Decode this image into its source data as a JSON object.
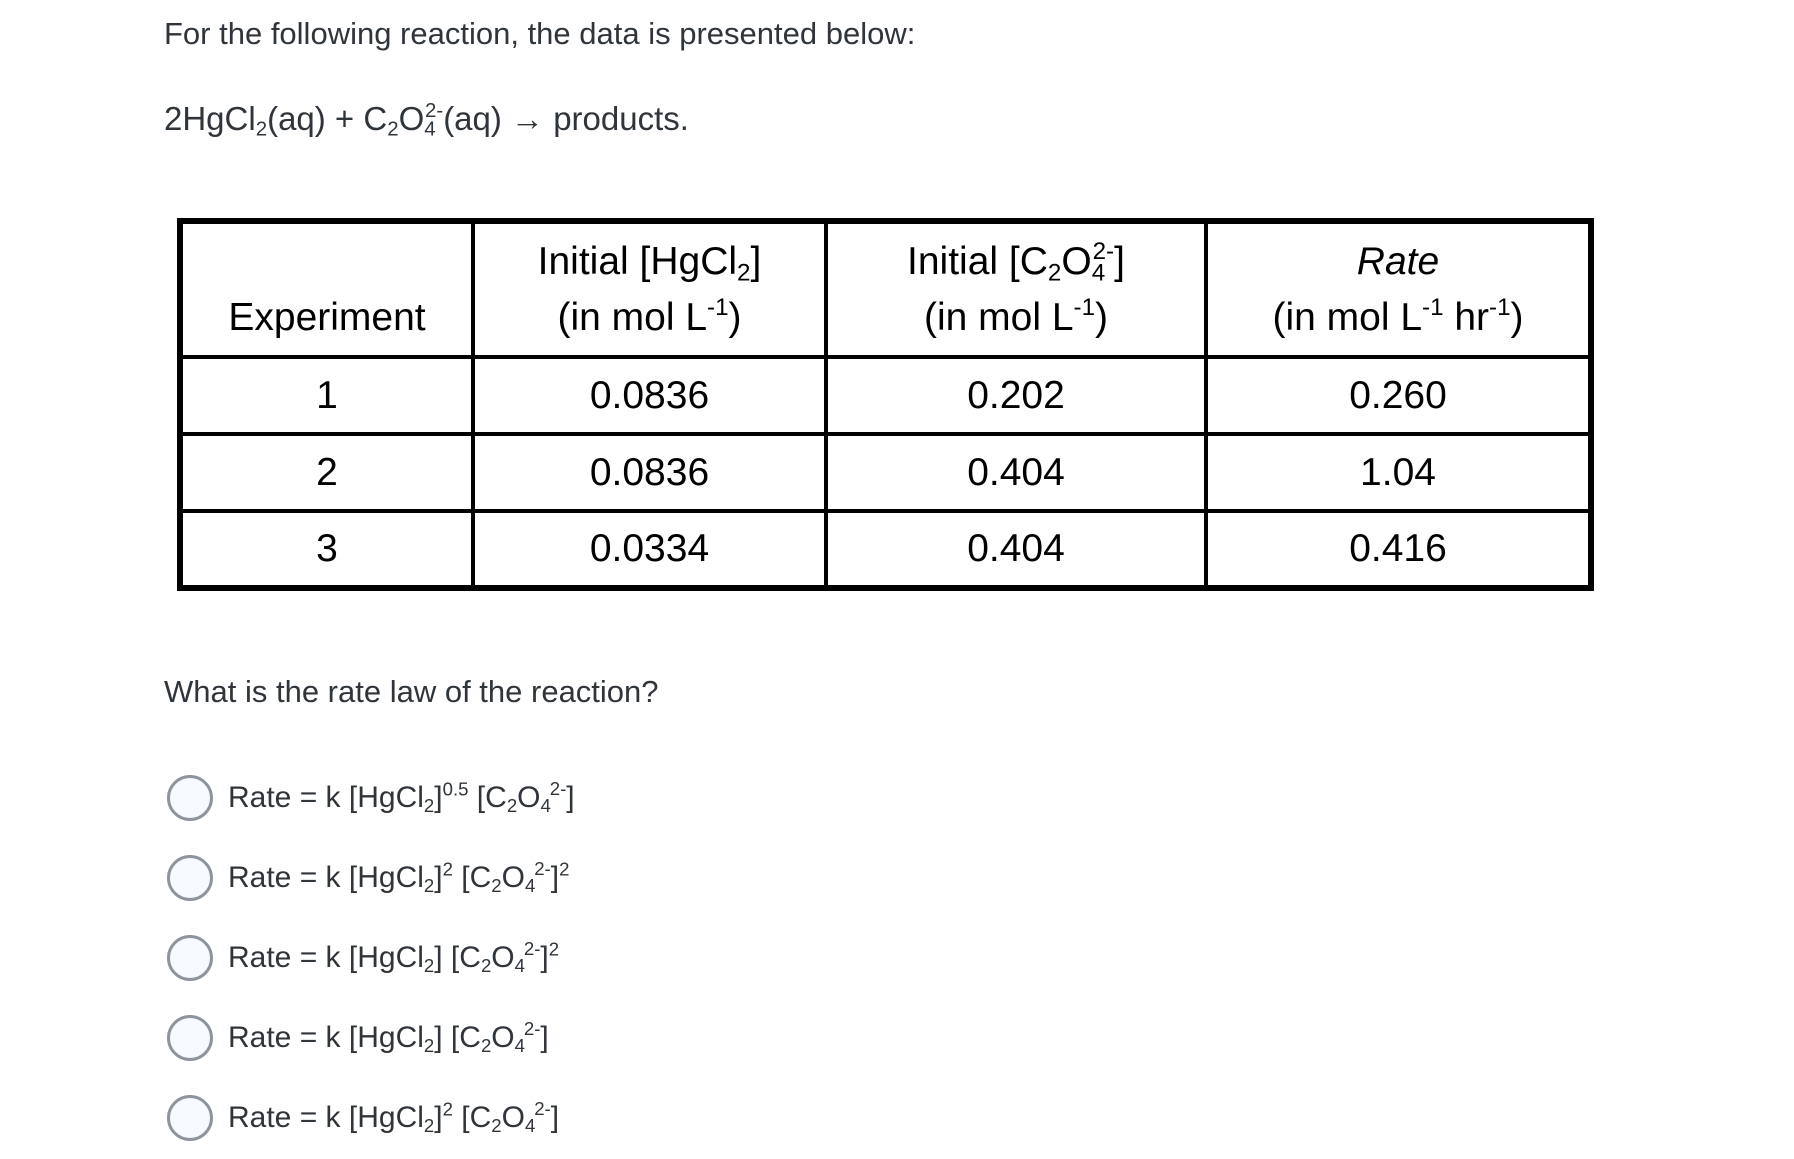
{
  "colors": {
    "text": "#2f353b",
    "table_text": "#000000",
    "table_border": "#000000",
    "radio_border": "#8d949e",
    "radio_fill": "#f6f9fd",
    "background": "#ffffff"
  },
  "intro_text": "For the following reaction, the data is presented below:",
  "equation_segments": [
    {
      "t": "n",
      "v": "2HgCl"
    },
    {
      "t": "b",
      "v": "2"
    },
    {
      "t": "n",
      "v": "(aq) + C"
    },
    {
      "t": "b",
      "v": "2"
    },
    {
      "t": "n",
      "v": "O"
    },
    {
      "t": "b",
      "v": "4"
    },
    {
      "t": "p",
      "v": "2-"
    },
    {
      "t": "n",
      "v": "(aq) → products."
    }
  ],
  "table": {
    "headers": {
      "experiment": "Experiment",
      "hgcl2_line1": [
        {
          "t": "n",
          "v": "Initial [HgCl"
        },
        {
          "t": "b",
          "v": "2"
        },
        {
          "t": "n",
          "v": "]"
        }
      ],
      "hgcl2_line2": [
        {
          "t": "n",
          "v": "(in mol L"
        },
        {
          "t": "p",
          "v": "-1"
        },
        {
          "t": "n",
          "v": ")"
        }
      ],
      "c2o4_line1": [
        {
          "t": "n",
          "v": "Initial [C"
        },
        {
          "t": "b",
          "v": "2"
        },
        {
          "t": "n",
          "v": "O"
        },
        {
          "t": "b",
          "v": "4"
        },
        {
          "t": "p",
          "v": "2-"
        },
        {
          "t": "n",
          "v": "]"
        }
      ],
      "c2o4_line2": [
        {
          "t": "n",
          "v": "(in mol L"
        },
        {
          "t": "p",
          "v": "-1"
        },
        {
          "t": "n",
          "v": ")"
        }
      ],
      "rate_line1": "Rate",
      "rate_line2": [
        {
          "t": "n",
          "v": "(in mol L"
        },
        {
          "t": "p",
          "v": "-1"
        },
        {
          "t": "n",
          "v": " hr"
        },
        {
          "t": "p",
          "v": "-1"
        },
        {
          "t": "n",
          "v": ")"
        }
      ]
    },
    "rows": [
      {
        "experiment": "1",
        "hgcl2": "0.0836",
        "c2o4": "0.202",
        "rate": "0.260"
      },
      {
        "experiment": "2",
        "hgcl2": "0.0836",
        "c2o4": "0.404",
        "rate": "1.04"
      },
      {
        "experiment": "3",
        "hgcl2": "0.0334",
        "c2o4": "0.404",
        "rate": "0.416"
      }
    ]
  },
  "question_text": "What is the rate law of the reaction?",
  "options": [
    {
      "formula": [
        {
          "t": "n",
          "v": "Rate = k [HgCl"
        },
        {
          "t": "b",
          "v": "2"
        },
        {
          "t": "n",
          "v": "]"
        },
        {
          "t": "p",
          "v": "0.5"
        },
        {
          "t": "n",
          "v": " [C"
        },
        {
          "t": "b",
          "v": "2"
        },
        {
          "t": "n",
          "v": "O"
        },
        {
          "t": "b",
          "v": "4"
        },
        {
          "t": "p",
          "v": "2-"
        },
        {
          "t": "n",
          "v": "]"
        }
      ]
    },
    {
      "formula": [
        {
          "t": "n",
          "v": "Rate = k [HgCl"
        },
        {
          "t": "b",
          "v": "2"
        },
        {
          "t": "n",
          "v": "]"
        },
        {
          "t": "p",
          "v": "2"
        },
        {
          "t": "n",
          "v": " [C"
        },
        {
          "t": "b",
          "v": "2"
        },
        {
          "t": "n",
          "v": "O"
        },
        {
          "t": "b",
          "v": "4"
        },
        {
          "t": "p",
          "v": "2-"
        },
        {
          "t": "n",
          "v": "]"
        },
        {
          "t": "p",
          "v": "2"
        }
      ]
    },
    {
      "formula": [
        {
          "t": "n",
          "v": "Rate = k [HgCl"
        },
        {
          "t": "b",
          "v": "2"
        },
        {
          "t": "n",
          "v": "] [C"
        },
        {
          "t": "b",
          "v": "2"
        },
        {
          "t": "n",
          "v": "O"
        },
        {
          "t": "b",
          "v": "4"
        },
        {
          "t": "p",
          "v": "2-"
        },
        {
          "t": "n",
          "v": "]"
        },
        {
          "t": "p",
          "v": "2"
        }
      ]
    },
    {
      "formula": [
        {
          "t": "n",
          "v": "Rate = k [HgCl"
        },
        {
          "t": "b",
          "v": "2"
        },
        {
          "t": "n",
          "v": "] [C"
        },
        {
          "t": "b",
          "v": "2"
        },
        {
          "t": "n",
          "v": "O"
        },
        {
          "t": "b",
          "v": "4"
        },
        {
          "t": "p",
          "v": "2-"
        },
        {
          "t": "n",
          "v": "]"
        }
      ]
    },
    {
      "formula": [
        {
          "t": "n",
          "v": "Rate = k [HgCl"
        },
        {
          "t": "b",
          "v": "2"
        },
        {
          "t": "n",
          "v": "]"
        },
        {
          "t": "p",
          "v": "2"
        },
        {
          "t": "n",
          "v": " [C"
        },
        {
          "t": "b",
          "v": "2"
        },
        {
          "t": "n",
          "v": "O"
        },
        {
          "t": "b",
          "v": "4"
        },
        {
          "t": "p",
          "v": "2-"
        },
        {
          "t": "n",
          "v": "]"
        }
      ]
    }
  ]
}
